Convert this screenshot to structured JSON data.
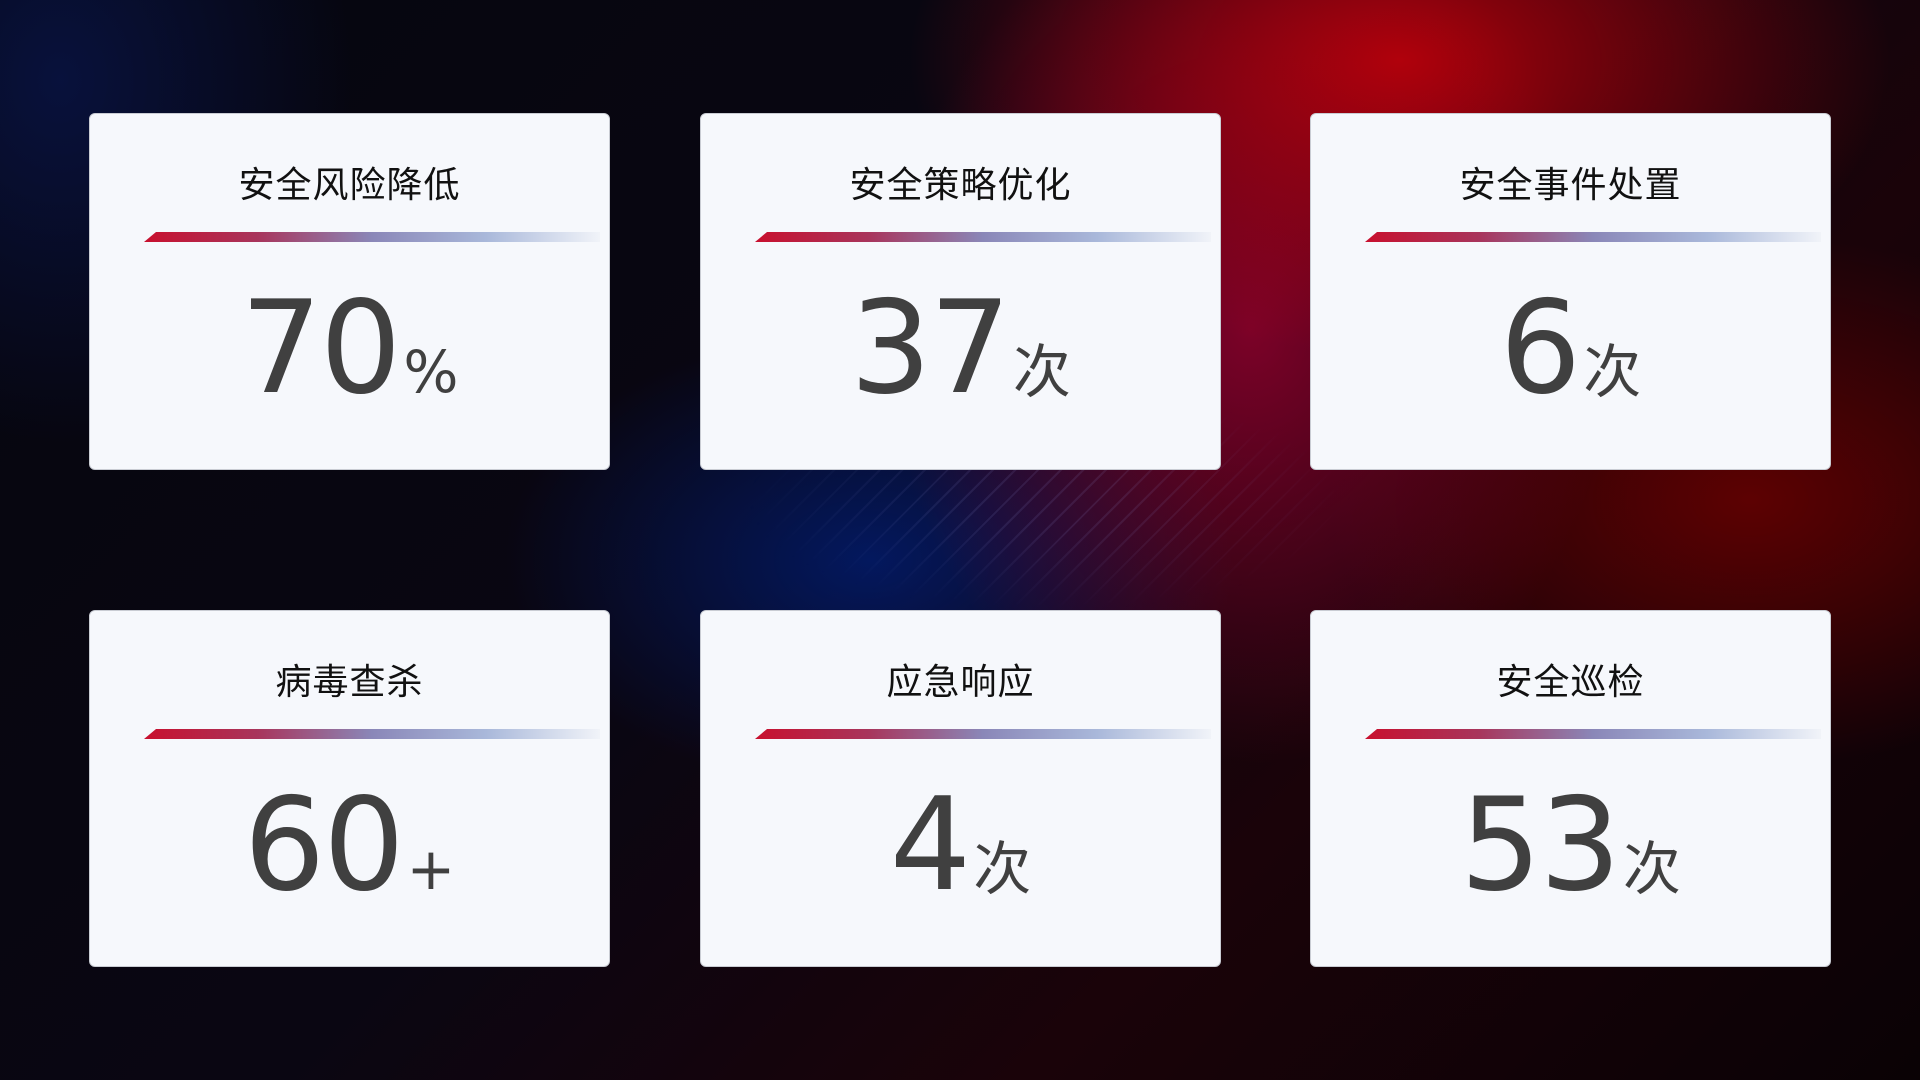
{
  "cards": [
    {
      "title": "安全风险降低",
      "value": "70",
      "unit": "%"
    },
    {
      "title": "安全策略优化",
      "value": "37",
      "unit": "次"
    },
    {
      "title": "安全事件处置",
      "value": "6",
      "unit": "次"
    },
    {
      "title": "病毒查杀",
      "value": "60",
      "unit": "+"
    },
    {
      "title": "应急响应",
      "value": "4",
      "unit": "次"
    },
    {
      "title": "安全巡检",
      "value": "53",
      "unit": "次"
    }
  ],
  "colors": {
    "accent_red": "#c8102e",
    "accent_blue": "#8a87b8",
    "card_bg": "#f6f8fc",
    "value_text": "#404040"
  }
}
